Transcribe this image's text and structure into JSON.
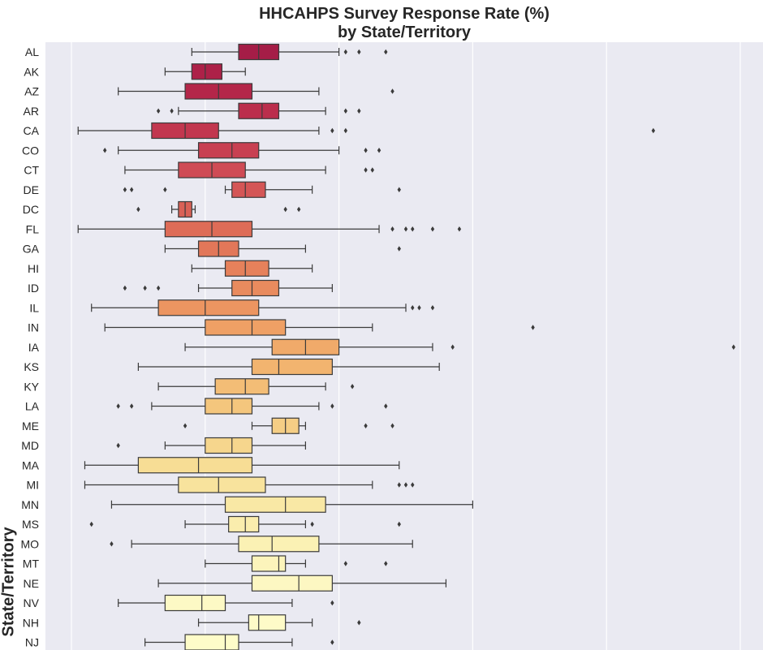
{
  "chart_data": {
    "type": "boxplot",
    "orientation": "horizontal",
    "title": "HHCAHPS Survey Response Rate (%)\nby State/Territory",
    "title_lines": [
      "HHCAHPS Survey Response Rate (%)",
      "by State/Territory"
    ],
    "xlabel": "",
    "ylabel": "State/Territory",
    "x_tick_labels_visible": false,
    "grid": true,
    "background_color": "#eaeaf2",
    "palette": "YlOrRd (reversed)",
    "categories": [
      "AL",
      "AK",
      "AZ",
      "AR",
      "CA",
      "CO",
      "CT",
      "DE",
      "DC",
      "FL",
      "GA",
      "HI",
      "ID",
      "IL",
      "IN",
      "IA",
      "KS",
      "KY",
      "LA",
      "ME",
      "MD",
      "MA",
      "MI",
      "MN",
      "MS",
      "MO",
      "MT",
      "NE",
      "NV",
      "NH",
      "NJ"
    ],
    "boxes": [
      {
        "label": "AL",
        "whisker_low": 18,
        "q1": 25,
        "median": 28,
        "q3": 31,
        "whisker_high": 40,
        "outliers": [
          41,
          43,
          47
        ],
        "color": "#a51d47"
      },
      {
        "label": "AK",
        "whisker_low": 14,
        "q1": 18,
        "median": 20,
        "q3": 22.5,
        "whisker_high": 26,
        "outliers": [],
        "color": "#ad2148"
      },
      {
        "label": "AZ",
        "whisker_low": 7,
        "q1": 17,
        "median": 22,
        "q3": 27,
        "whisker_high": 37,
        "outliers": [
          48
        ],
        "color": "#b42649"
      },
      {
        "label": "AR",
        "whisker_low": 16,
        "q1": 25,
        "median": 28.5,
        "q3": 31,
        "whisker_high": 38,
        "outliers": [
          13,
          15,
          41,
          43
        ],
        "color": "#bb2e4c"
      },
      {
        "label": "CA",
        "whisker_low": 1,
        "q1": 12,
        "median": 17,
        "q3": 22,
        "whisker_high": 37,
        "outliers": [
          39,
          41,
          87
        ],
        "color": "#c2374f"
      },
      {
        "label": "CO",
        "whisker_low": 7,
        "q1": 19,
        "median": 24,
        "q3": 28,
        "whisker_high": 40,
        "outliers": [
          5,
          44,
          46
        ],
        "color": "#c84052"
      },
      {
        "label": "CT",
        "whisker_low": 8,
        "q1": 16,
        "median": 21,
        "q3": 26,
        "whisker_high": 38,
        "outliers": [
          44,
          45
        ],
        "color": "#cf4b55"
      },
      {
        "label": "DE",
        "whisker_low": 23,
        "q1": 24,
        "median": 26,
        "q3": 29,
        "whisker_high": 36,
        "outliers": [
          8,
          9,
          14,
          49
        ],
        "color": "#d45656"
      },
      {
        "label": "DC",
        "whisker_low": 15,
        "q1": 16,
        "median": 17,
        "q3": 18,
        "whisker_high": 18.5,
        "outliers": [
          10,
          32,
          34
        ],
        "color": "#d96156"
      },
      {
        "label": "FL",
        "whisker_low": 1,
        "q1": 14,
        "median": 21,
        "q3": 27,
        "whisker_high": 46,
        "outliers": [
          48,
          50,
          51,
          54,
          58
        ],
        "color": "#de6c57"
      },
      {
        "label": "GA",
        "whisker_low": 14,
        "q1": 19,
        "median": 22,
        "q3": 25,
        "whisker_high": 35,
        "outliers": [
          49
        ],
        "color": "#e27759"
      },
      {
        "label": "HI",
        "whisker_low": 18,
        "q1": 23,
        "median": 26,
        "q3": 29.5,
        "whisker_high": 36,
        "outliers": [],
        "color": "#e6815b"
      },
      {
        "label": "ID",
        "whisker_low": 19,
        "q1": 24,
        "median": 27,
        "q3": 31,
        "whisker_high": 39,
        "outliers": [
          8,
          11,
          13
        ],
        "color": "#e98b5e"
      },
      {
        "label": "IL",
        "whisker_low": 3,
        "q1": 13,
        "median": 20,
        "q3": 28,
        "whisker_high": 50,
        "outliers": [
          51,
          52,
          54
        ],
        "color": "#ec9561"
      },
      {
        "label": "IN",
        "whisker_low": 5,
        "q1": 20,
        "median": 27,
        "q3": 32,
        "whisker_high": 45,
        "outliers": [
          69
        ],
        "color": "#efa065"
      },
      {
        "label": "IA",
        "whisker_low": 17,
        "q1": 30,
        "median": 35,
        "q3": 40,
        "whisker_high": 54,
        "outliers": [
          57,
          99
        ],
        "color": "#f0aa6a"
      },
      {
        "label": "KS",
        "whisker_low": 10,
        "q1": 27,
        "median": 31,
        "q3": 39,
        "whisker_high": 55,
        "outliers": [],
        "color": "#f2b46f"
      },
      {
        "label": "KY",
        "whisker_low": 13,
        "q1": 21.5,
        "median": 26,
        "q3": 29.5,
        "whisker_high": 38,
        "outliers": [
          42
        ],
        "color": "#f3bd76"
      },
      {
        "label": "LA",
        "whisker_low": 12,
        "q1": 20,
        "median": 24,
        "q3": 27,
        "whisker_high": 37,
        "outliers": [
          7,
          9,
          39,
          47
        ],
        "color": "#f4c67d"
      },
      {
        "label": "ME",
        "whisker_low": 27,
        "q1": 30,
        "median": 32,
        "q3": 34,
        "whisker_high": 35,
        "outliers": [
          17,
          44,
          48
        ],
        "color": "#f5ce85"
      },
      {
        "label": "MD",
        "whisker_low": 14,
        "q1": 20,
        "median": 24,
        "q3": 27,
        "whisker_high": 35,
        "outliers": [
          7
        ],
        "color": "#f6d68d"
      },
      {
        "label": "MA",
        "whisker_low": 2,
        "q1": 10,
        "median": 19,
        "q3": 27,
        "whisker_high": 49,
        "outliers": [],
        "color": "#f7dd95"
      },
      {
        "label": "MI",
        "whisker_low": 2,
        "q1": 16,
        "median": 22,
        "q3": 29,
        "whisker_high": 45,
        "outliers": [
          49,
          50,
          51
        ],
        "color": "#f8e39d"
      },
      {
        "label": "MN",
        "whisker_low": 6,
        "q1": 23,
        "median": 32,
        "q3": 38,
        "whisker_high": 60,
        "outliers": [],
        "color": "#f9e8a5"
      },
      {
        "label": "MS",
        "whisker_low": 17,
        "q1": 23.5,
        "median": 26,
        "q3": 28,
        "whisker_high": 35,
        "outliers": [
          3,
          36,
          49
        ],
        "color": "#faedad"
      },
      {
        "label": "MO",
        "whisker_low": 9,
        "q1": 25,
        "median": 30,
        "q3": 37,
        "whisker_high": 51,
        "outliers": [
          6
        ],
        "color": "#fbf1b4"
      },
      {
        "label": "MT",
        "whisker_low": 20,
        "q1": 27,
        "median": 31,
        "q3": 32,
        "whisker_high": 35,
        "outliers": [
          41,
          47
        ],
        "color": "#fcf4bb"
      },
      {
        "label": "NE",
        "whisker_low": 13,
        "q1": 27,
        "median": 34,
        "q3": 39,
        "whisker_high": 56,
        "outliers": [],
        "color": "#fdf7c2"
      },
      {
        "label": "NV",
        "whisker_low": 7,
        "q1": 14,
        "median": 19.5,
        "q3": 23,
        "whisker_high": 33,
        "outliers": [
          39
        ],
        "color": "#fdf9c5"
      },
      {
        "label": "NH",
        "whisker_low": 19,
        "q1": 26.5,
        "median": 28,
        "q3": 32,
        "whisker_high": 36,
        "outliers": [
          43
        ],
        "color": "#fefbc8"
      },
      {
        "label": "NJ",
        "whisker_low": 11,
        "q1": 17,
        "median": 23,
        "q3": 25,
        "whisker_high": 33,
        "outliers": [
          39
        ],
        "color": "#fefcc9"
      }
    ]
  }
}
